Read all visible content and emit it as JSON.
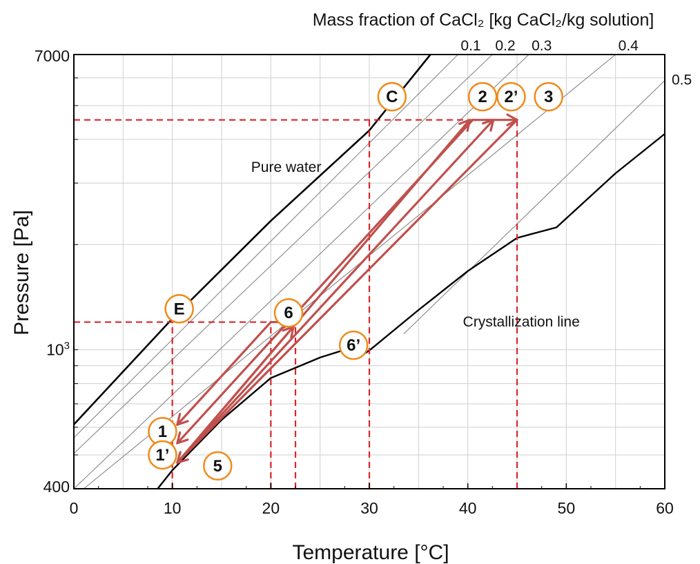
{
  "chart_data": {
    "type": "line",
    "title": "Mass fraction of CaCl₂ [kg CaCl₂/kg solution]",
    "xlabel": "Temperature [°C]",
    "ylabel": "Pressure [Pa]",
    "xlim": [
      0,
      60
    ],
    "ylim": [
      400,
      7000
    ],
    "yscale": "log",
    "grid": true,
    "x_ticks": [
      0,
      10,
      20,
      30,
      40,
      50,
      60
    ],
    "x_tick_labels": [
      "0",
      "10",
      "20",
      "30",
      "40",
      "50",
      "60"
    ],
    "y_tick_labels": [
      {
        "value": 7000,
        "label": "7000"
      },
      {
        "value": 1000,
        "label": "10",
        "sup": "3"
      },
      {
        "value": 400,
        "label": "400"
      }
    ],
    "y_gridlines": [
      400,
      500,
      600,
      700,
      800,
      900,
      1000,
      2000,
      3000,
      4000,
      5000,
      6000,
      7000
    ],
    "colors": {
      "curve": "#000000",
      "iso": "#8f8f8f",
      "grid": "#cfcfcf",
      "dashed": "#d9252a",
      "arrow": "#c0504d",
      "marker": "#f08a1a"
    },
    "pure_water": {
      "label": "Pure water",
      "x": [
        0,
        10,
        20,
        30,
        36.2
      ],
      "y": [
        611,
        1228,
        2339,
        4246,
        7000
      ]
    },
    "isolines": [
      {
        "label": "0.1",
        "x": [
          0,
          39
        ],
        "y": [
          560,
          7000
        ]
      },
      {
        "label": "0.2",
        "x": [
          0,
          42.5
        ],
        "y": [
          505,
          7000
        ]
      },
      {
        "label": "0.3",
        "x": [
          0,
          46.2
        ],
        "y": [
          400,
          7000
        ]
      },
      {
        "label": "0.4",
        "x": [
          1,
          55
        ],
        "y": [
          400,
          7000
        ]
      },
      {
        "label": "0.5",
        "x": [
          33.5,
          60
        ],
        "y": [
          1110,
          5900
        ]
      }
    ],
    "crystallization_line": {
      "label": "Crystallization line",
      "x": [
        8.5,
        10,
        15,
        20,
        25,
        28,
        29.5,
        30,
        35,
        40,
        45,
        49,
        55,
        60
      ],
      "y": [
        400,
        452,
        630,
        830,
        950,
        1010,
        975,
        995,
        1300,
        1680,
        2090,
        2240,
        3200,
        4150
      ]
    },
    "reference_lines": [
      {
        "type": "horizontal",
        "y": 4550,
        "x_start": 0,
        "x_end": 45
      },
      {
        "type": "horizontal",
        "y": 1200,
        "x_start": 0,
        "x_end": 22.5
      },
      {
        "type": "vertical",
        "x": 10,
        "y_start": 400,
        "y_end": 1200
      },
      {
        "type": "vertical",
        "x": 20,
        "y_start": 400,
        "y_end": 1200
      },
      {
        "type": "vertical",
        "x": 22.5,
        "y_start": 400,
        "y_end": 1200
      },
      {
        "type": "vertical",
        "x": 30,
        "y_start": 400,
        "y_end": 4550
      },
      {
        "type": "vertical",
        "x": 45,
        "y_start": 400,
        "y_end": 4550
      }
    ],
    "cycle_arrows": [
      {
        "from": [
          20,
          1200
        ],
        "to": [
          10.5,
          610
        ]
      },
      {
        "from": [
          40.5,
          4550
        ],
        "to": [
          10.5,
          540
        ]
      },
      {
        "from": [
          45,
          4550
        ],
        "to": [
          10.5,
          475
        ]
      },
      {
        "from": [
          10.5,
          475
        ],
        "to": [
          22.3,
          1165
        ]
      },
      {
        "from": [
          10.5,
          475
        ],
        "to": [
          40.2,
          4550
        ]
      },
      {
        "from": [
          10.5,
          475
        ],
        "to": [
          42.6,
          4550
        ]
      },
      {
        "from": [
          20,
          1200
        ],
        "to": [
          22.3,
          1200
        ]
      },
      {
        "from": [
          40.5,
          4550
        ],
        "to": [
          45,
          4550
        ]
      }
    ],
    "point_labels": [
      {
        "text": "C",
        "x": 32.3,
        "y": 5300
      },
      {
        "text": "2",
        "x": 41.5,
        "y": 5300
      },
      {
        "text": "2’",
        "x": 44.4,
        "y": 5300
      },
      {
        "text": "3",
        "x": 48.2,
        "y": 5300
      },
      {
        "text": "E",
        "x": 10.7,
        "y": 1310
      },
      {
        "text": "6",
        "x": 21.8,
        "y": 1275
      },
      {
        "text": "6’",
        "x": 28.4,
        "y": 1030
      },
      {
        "text": "1",
        "x": 9.0,
        "y": 583
      },
      {
        "text": "1’",
        "x": 9.0,
        "y": 500
      },
      {
        "text": "5",
        "x": 14.6,
        "y": 465
      }
    ],
    "annotations": [
      {
        "text": "Pure water",
        "x": 18,
        "y": 3230
      },
      {
        "text": "Crystallization line",
        "x": 39.5,
        "y": 1165
      }
    ]
  }
}
